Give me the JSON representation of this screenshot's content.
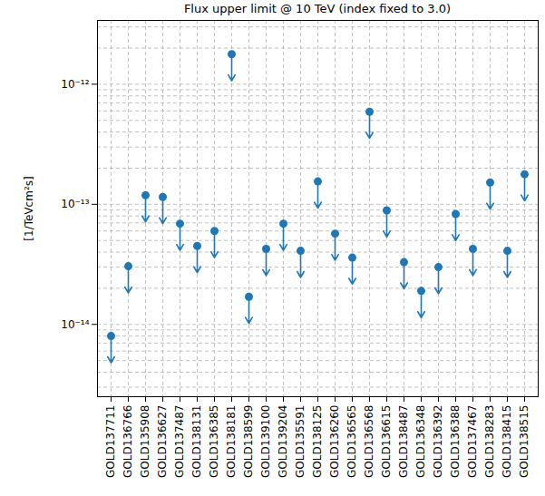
{
  "chart_data": {
    "type": "upper_limit",
    "title": "Flux upper limit @ 10 TeV (index fixed to 3.0)",
    "y_label": "[1/TeVcm²s]",
    "categories": [
      "GOLD137711",
      "GOLD136766",
      "GOLD135908",
      "GOLD136627",
      "GOLD137487",
      "GOLD138131",
      "GOLD136385",
      "GOLD138181",
      "GOLD138599",
      "GOLD139100",
      "GOLD139204",
      "GOLD135591",
      "GOLD138125",
      "GOLD136260",
      "GOLD136565",
      "GOLD136568",
      "GOLD136615",
      "GOLD138487",
      "GOLD136348",
      "GOLD136392",
      "GOLD136388",
      "GOLD137467",
      "GOLD138283",
      "GOLD138415",
      "GOLD138515"
    ],
    "values": [
      8e-15,
      3.05e-14,
      1.19e-13,
      1.15e-13,
      6.9e-14,
      4.5e-14,
      6e-14,
      1.78e-12,
      1.7e-14,
      4.25e-14,
      6.9e-14,
      4.1e-14,
      1.55e-13,
      5.7e-14,
      3.6e-14,
      5.9e-13,
      8.9e-14,
      3.3e-14,
      1.9e-14,
      3e-14,
      8.3e-14,
      4.25e-14,
      1.52e-13,
      4.1e-14,
      1.78e-13
    ],
    "color": "#1f77b4",
    "marker": "o",
    "log": "y",
    "grid": true,
    "ylim": [
      2.5e-15,
      3.4e-12
    ],
    "yticks": [
      {
        "value": 1e-14,
        "label": "10⁻¹⁴"
      },
      {
        "value": 1e-13,
        "label": "10⁻¹³"
      },
      {
        "value": 1e-12,
        "label": "10⁻¹²"
      }
    ]
  }
}
